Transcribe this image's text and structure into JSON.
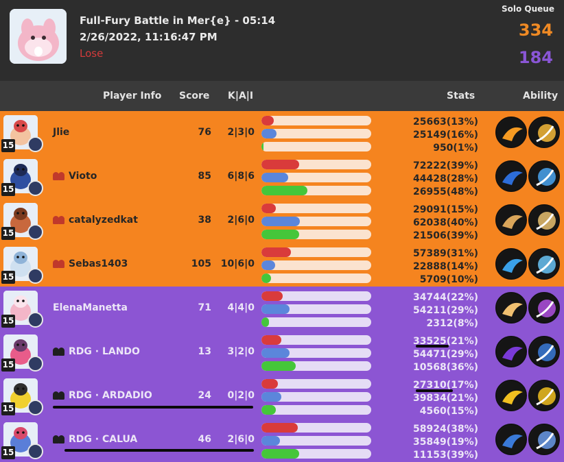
{
  "header": {
    "title": "Full-Fury Battle in Mer{e} - 05:14",
    "date": "2/26/2022, 11:16:47 PM",
    "result": "Lose",
    "queue": "Solo Queue",
    "team_score_orange": "334",
    "team_score_purple": "184"
  },
  "columns": {
    "player_info": "Player Info",
    "score": "Score",
    "kai": "K|A|I",
    "stats": "Stats",
    "ability": "Ability"
  },
  "players": [
    {
      "name": "Jlie",
      "party": false,
      "score": "76",
      "kai": "2|3|0",
      "level": "15",
      "team": "orange",
      "stat1": "25663(13%)",
      "stat2": "25149(16%)",
      "stat3": "950(1%)",
      "p1": 0.13,
      "p2": 0.16,
      "p3": 0.01
    },
    {
      "name": "Vioto",
      "party": true,
      "score": "85",
      "kai": "6|8|6",
      "level": "15",
      "team": "orange",
      "stat1": "72222(39%)",
      "stat2": "44428(28%)",
      "stat3": "26955(48%)",
      "p1": 0.39,
      "p2": 0.28,
      "p3": 0.48
    },
    {
      "name": "catalyzedkat",
      "party": true,
      "score": "38",
      "kai": "2|6|0",
      "level": "15",
      "team": "orange",
      "stat1": "29091(15%)",
      "stat2": "62038(40%)",
      "stat3": "21506(39%)",
      "p1": 0.15,
      "p2": 0.4,
      "p3": 0.39
    },
    {
      "name": "Sebas1403",
      "party": true,
      "score": "105",
      "kai": "10|6|0",
      "level": "15",
      "team": "orange",
      "stat1": "57389(31%)",
      "stat2": "22888(14%)",
      "stat3": "5709(10%)",
      "p1": 0.31,
      "p2": 0.14,
      "p3": 0.1
    },
    {
      "name": "ElenaManetta",
      "party": false,
      "score": "71",
      "kai": "4|4|0",
      "level": "15",
      "team": "purple",
      "stat1": "34744(22%)",
      "stat2": "54211(29%)",
      "stat3": "2312(8%)",
      "p1": 0.22,
      "p2": 0.29,
      "p3": 0.08
    },
    {
      "name": "RDG · LANDO",
      "party": true,
      "score": "13",
      "kai": "3|2|0",
      "level": "15",
      "team": "purple",
      "stat1": "33525(21%)",
      "stat2": "54471(29%)",
      "stat3": "10568(36%)",
      "p1": 0.21,
      "p2": 0.29,
      "p3": 0.36
    },
    {
      "name": "RDG · ARDADIO",
      "party": true,
      "score": "24",
      "kai": "0|2|0",
      "level": "15",
      "team": "purple",
      "stat1": "27310(17%)",
      "stat2": "39834(21%)",
      "stat3": "4560(15%)",
      "p1": 0.17,
      "p2": 0.21,
      "p3": 0.15
    },
    {
      "name": "RDG · CALUA",
      "party": true,
      "score": "46",
      "kai": "2|6|0",
      "level": "15",
      "team": "purple",
      "stat1": "58924(38%)",
      "stat2": "35849(19%)",
      "stat3": "11153(39%)",
      "p1": 0.38,
      "p2": 0.19,
      "p3": 0.39
    }
  ],
  "icons": {
    "avatar": "blissey-portrait",
    "party": "party-group-icon",
    "held_item": "held-item-icon"
  },
  "colors": {
    "orange_team": "#f5841f",
    "purple_team": "#8c55d3",
    "result_lose": "#d33b3b",
    "bar_damage": "#d93b3b",
    "bar_taken": "#5b86db",
    "bar_heal": "#45c63a"
  }
}
